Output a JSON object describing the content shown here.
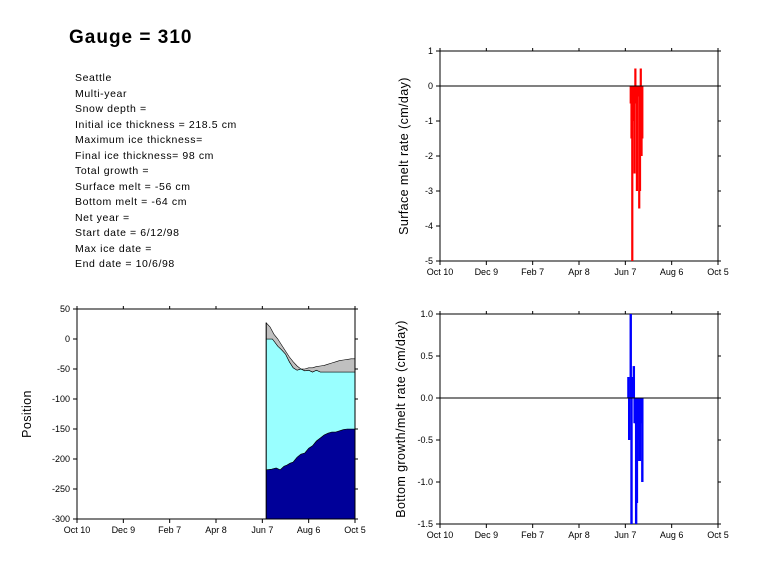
{
  "header": {
    "title": "Gauge = 310"
  },
  "info_lines": [
    "Seattle",
    "Multi-year",
    "Snow depth =",
    "Initial ice thickness = 218.5 cm",
    "Maximum ice thickness=",
    "Final ice thickness= 98 cm",
    "Total growth =",
    "Surface melt = -56 cm",
    "Bottom melt = -64 cm",
    "Net year =",
    "Start date = 6/12/98",
    "Max ice date =",
    "End date = 10/6/98"
  ],
  "colors": {
    "surface_melt": "#ff0000",
    "bottom_rate": "#0000ff",
    "snow": "#c0c0c0",
    "ice": "#99ffff",
    "below": "#000099"
  },
  "chart_data": [
    {
      "id": "surface",
      "type": "bar",
      "title": "",
      "xlabel": "",
      "ylabel": "Surface melt rate (cm/day)",
      "x_tick_labels": [
        "Oct 10",
        "Dec 9",
        "Feb 7",
        "Apr 8",
        "Jun 7",
        "Aug 6",
        "Oct 5"
      ],
      "xlim": [
        0,
        360
      ],
      "ylim": [
        -5,
        1
      ],
      "y_ticks": [
        1,
        0,
        -1,
        -2,
        -3,
        -4,
        -5
      ],
      "zero_line": true,
      "x_unit": "days after Oct 10",
      "bars": [
        {
          "x": 247,
          "value": -0.5
        },
        {
          "x": 248,
          "value": -1.5
        },
        {
          "x": 249,
          "value": -5.0
        },
        {
          "x": 250,
          "value": -0.3
        },
        {
          "x": 251,
          "value": -1.0
        },
        {
          "x": 252,
          "value": -2.5
        },
        {
          "x": 253,
          "value": 0.5
        },
        {
          "x": 254,
          "value": -0.5
        },
        {
          "x": 255,
          "value": -3.0
        },
        {
          "x": 256,
          "value": -0.2
        },
        {
          "x": 257,
          "value": -0.3
        },
        {
          "x": 258,
          "value": -3.5
        },
        {
          "x": 259,
          "value": -3.0
        },
        {
          "x": 260,
          "value": 0.5
        },
        {
          "x": 261,
          "value": -2.0
        },
        {
          "x": 262,
          "value": -1.5
        }
      ]
    },
    {
      "id": "position",
      "type": "area",
      "title": "",
      "xlabel": "",
      "ylabel": "Position",
      "x_tick_labels": [
        "Oct 10",
        "Dec 9",
        "Feb 7",
        "Apr 8",
        "Jun 7",
        "Aug 6",
        "Oct 5"
      ],
      "xlim": [
        0,
        360
      ],
      "ylim": [
        -300,
        50
      ],
      "y_ticks": [
        50,
        0,
        -50,
        -100,
        -150,
        -200,
        -250,
        -300
      ],
      "x_start": 245,
      "x_end": 360,
      "series": [
        {
          "name": "",
          "role": "snow_top",
          "points": [
            [
              245,
              27
            ],
            [
              250,
              20
            ],
            [
              255,
              8
            ],
            [
              260,
              0
            ],
            [
              265,
              -10
            ],
            [
              270,
              -20
            ],
            [
              275,
              -30
            ],
            [
              280,
              -38
            ],
            [
              285,
              -45
            ],
            [
              290,
              -50
            ],
            [
              295,
              -50
            ],
            [
              300,
              -48
            ],
            [
              305,
              -48
            ],
            [
              310,
              -46
            ],
            [
              315,
              -45
            ],
            [
              320,
              -44
            ],
            [
              325,
              -42
            ],
            [
              330,
              -40
            ],
            [
              335,
              -38
            ],
            [
              340,
              -36
            ],
            [
              345,
              -35
            ],
            [
              350,
              -34
            ],
            [
              355,
              -33
            ],
            [
              360,
              -33
            ]
          ]
        },
        {
          "name": "",
          "role": "ice_top",
          "points": [
            [
              245,
              0
            ],
            [
              253,
              0
            ],
            [
              256,
              -5
            ],
            [
              260,
              -12
            ],
            [
              265,
              -18
            ],
            [
              270,
              -25
            ],
            [
              275,
              -38
            ],
            [
              280,
              -48
            ],
            [
              285,
              -52
            ],
            [
              290,
              -50
            ],
            [
              295,
              -53
            ],
            [
              300,
              -52
            ],
            [
              305,
              -55
            ],
            [
              310,
              -52
            ],
            [
              315,
              -55
            ],
            [
              320,
              -55
            ],
            [
              330,
              -55
            ],
            [
              340,
              -55
            ],
            [
              350,
              -55
            ],
            [
              360,
              -55
            ]
          ]
        },
        {
          "name": "",
          "role": "ice_bottom",
          "points": [
            [
              245,
              -218
            ],
            [
              252,
              -217
            ],
            [
              258,
              -215
            ],
            [
              263,
              -218
            ],
            [
              268,
              -212
            ],
            [
              272,
              -210
            ],
            [
              276,
              -207
            ],
            [
              280,
              -205
            ],
            [
              285,
              -197
            ],
            [
              290,
              -192
            ],
            [
              295,
              -190
            ],
            [
              300,
              -182
            ],
            [
              305,
              -178
            ],
            [
              310,
              -170
            ],
            [
              315,
              -165
            ],
            [
              320,
              -160
            ],
            [
              325,
              -157
            ],
            [
              330,
              -155
            ],
            [
              335,
              -155
            ],
            [
              340,
              -153
            ],
            [
              345,
              -151
            ],
            [
              350,
              -150
            ],
            [
              355,
              -150
            ],
            [
              360,
              -150
            ]
          ]
        }
      ]
    },
    {
      "id": "bottom",
      "type": "bar",
      "title": "",
      "xlabel": "",
      "ylabel": "Bottom growth/melt rate (cm/day)",
      "x_tick_labels": [
        "Oct 10",
        "Dec 9",
        "Feb 7",
        "Apr 8",
        "Jun 7",
        "Aug 6",
        "Oct 5"
      ],
      "xlim": [
        0,
        360
      ],
      "ylim": [
        -1.5,
        1
      ],
      "y_ticks": [
        "1.0",
        "0.5",
        "0.0",
        "-0.5",
        "-1.0",
        "-1.5"
      ],
      "zero_line": true,
      "bars": [
        {
          "x": 244,
          "value": 0.25
        },
        {
          "x": 245,
          "value": -0.5
        },
        {
          "x": 247,
          "value": 1.0
        },
        {
          "x": 248,
          "value": -1.5
        },
        {
          "x": 249,
          "value": 0.25
        },
        {
          "x": 250,
          "value": 0.25
        },
        {
          "x": 251,
          "value": 0.38
        },
        {
          "x": 252,
          "value": -0.3
        },
        {
          "x": 253,
          "value": -0.3
        },
        {
          "x": 254,
          "value": -1.5
        },
        {
          "x": 255,
          "value": -1.25
        },
        {
          "x": 256,
          "value": -0.3
        },
        {
          "x": 257,
          "value": -0.5
        },
        {
          "x": 258,
          "value": -0.75
        },
        {
          "x": 259,
          "value": -0.75
        },
        {
          "x": 260,
          "value": -0.3
        },
        {
          "x": 261,
          "value": -0.3
        },
        {
          "x": 262,
          "value": -1.0
        }
      ]
    }
  ]
}
